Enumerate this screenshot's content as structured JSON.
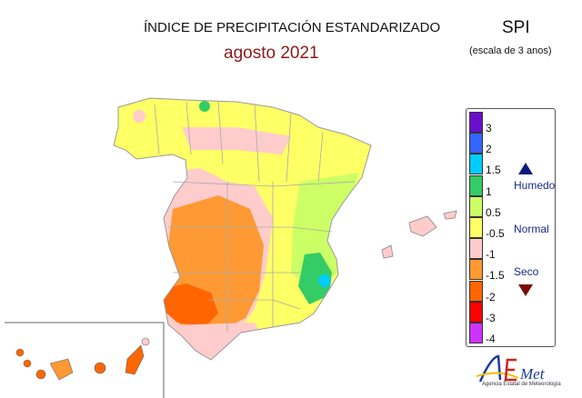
{
  "title": "ÍNDICE DE PRECIPITACIÓN ESTANDARIZADO",
  "subtitle": "agosto 2021",
  "index_name": "SPI",
  "scale_note": "(escala de 3 anos)",
  "legend": {
    "swatches": [
      {
        "label": "3",
        "color": "#6a0fcc"
      },
      {
        "label": "2",
        "color": "#3366ff"
      },
      {
        "label": "1.5",
        "color": "#00ccff"
      },
      {
        "label": "1",
        "color": "#33cc66"
      },
      {
        "label": "0.5",
        "color": "#ccff66"
      },
      {
        "label": "-0.5",
        "color": "#ffff66"
      },
      {
        "label": "-1",
        "color": "#ffcccc"
      },
      {
        "label": "-1.5",
        "color": "#ff9933"
      },
      {
        "label": "-2",
        "color": "#ff6600"
      },
      {
        "label": "-3",
        "color": "#ff0000"
      },
      {
        "label": "-4",
        "color": "#cc33ff"
      }
    ],
    "humedo": "Humedo",
    "normal": "Normal",
    "seco": "Seco"
  },
  "logo": {
    "name": "AEMet",
    "tagline": "Agencia Estatal de Meteorología"
  }
}
